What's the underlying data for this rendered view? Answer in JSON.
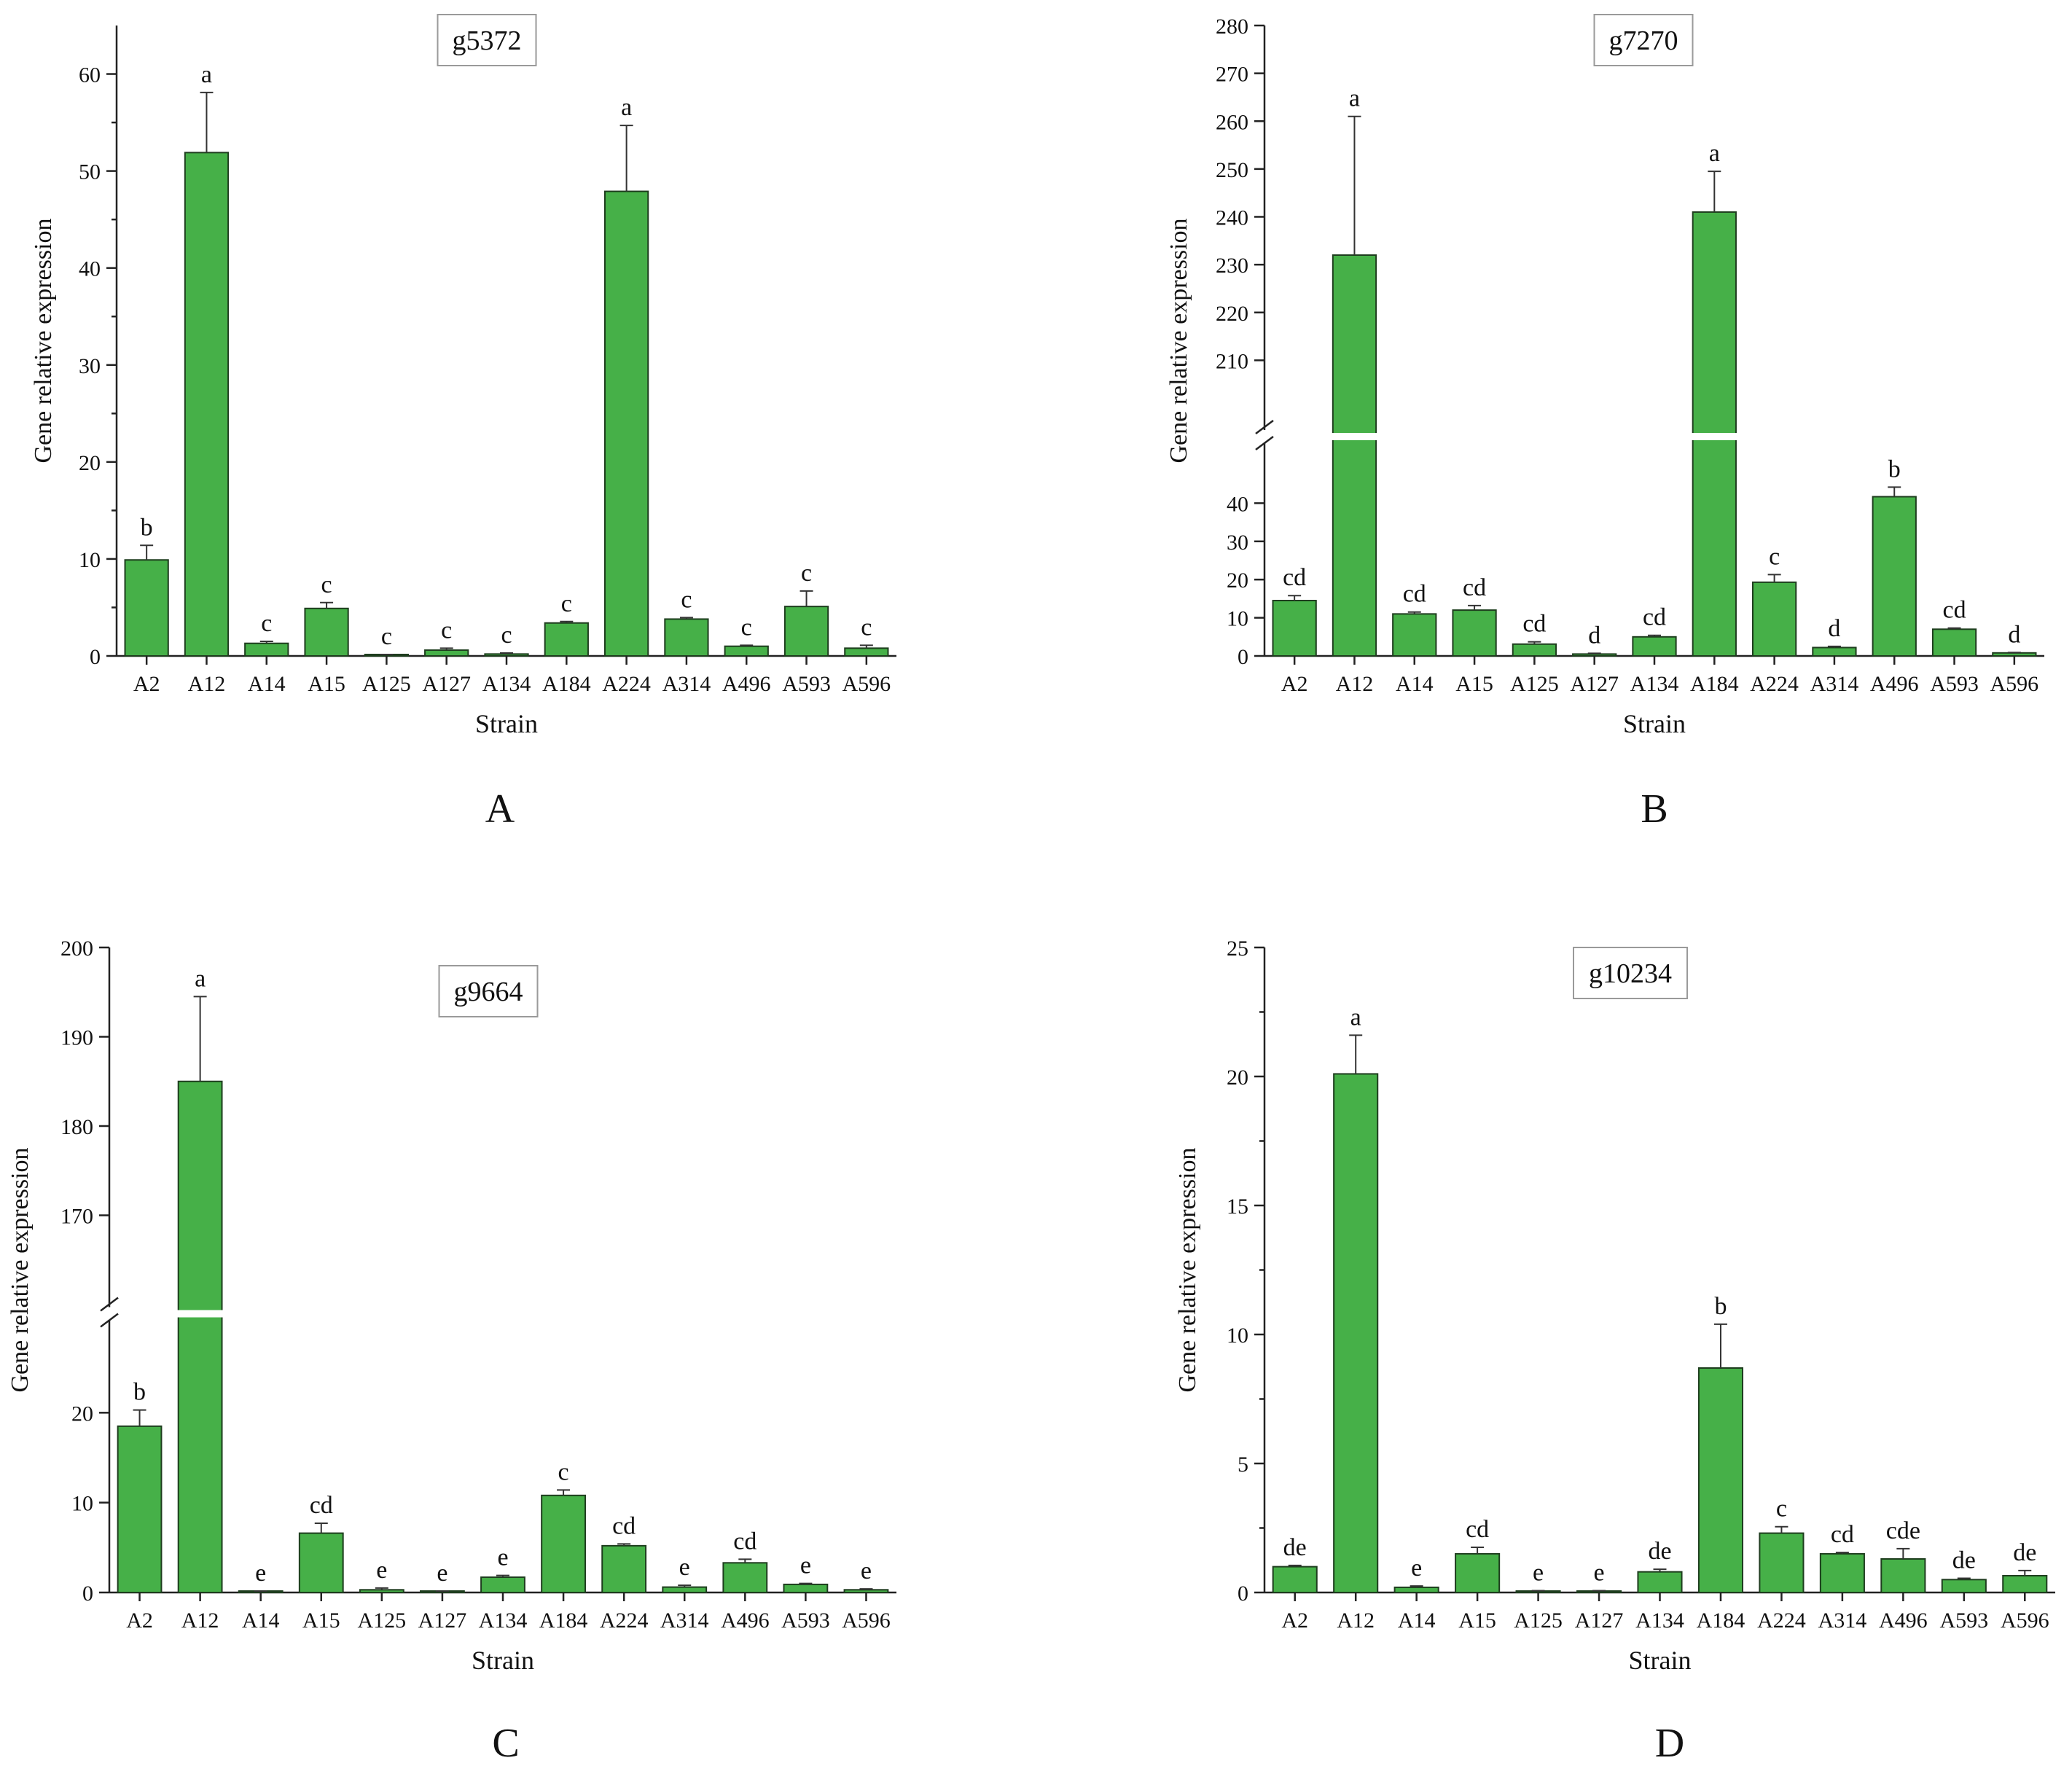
{
  "panels": [
    {
      "letter": "A",
      "title": "g5372",
      "ylabel": "Gene relative expression",
      "xlabel": "Strain",
      "chart_data": {
        "type": "bar",
        "title": "g5372",
        "xlabel": "Strain",
        "ylabel": "Gene relative expression",
        "categories": [
          "A2",
          "A12",
          "A14",
          "A15",
          "A125",
          "A127",
          "A134",
          "A184",
          "A224",
          "A314",
          "A496",
          "A593",
          "A596"
        ],
        "values": [
          9.9,
          51.9,
          1.3,
          4.9,
          0.1,
          0.6,
          0.2,
          3.4,
          47.9,
          3.8,
          1.0,
          5.1,
          0.8
        ],
        "errors": [
          1.5,
          6.2,
          0.2,
          0.6,
          0.05,
          0.2,
          0.1,
          0.15,
          6.8,
          0.15,
          0.1,
          1.6,
          0.3
        ],
        "letters": [
          "b",
          "a",
          "c",
          "c",
          "c",
          "c",
          "c",
          "c",
          "a",
          "c",
          "c",
          "c",
          "c"
        ],
        "ylim": [
          0,
          65
        ],
        "yticks": [
          0,
          10,
          20,
          30,
          40,
          50,
          60
        ],
        "break": null
      }
    },
    {
      "letter": "B",
      "title": "g7270",
      "ylabel": "Gene relative expression",
      "xlabel": "Strain",
      "chart_data": {
        "type": "bar",
        "title": "g7270",
        "xlabel": "Strain",
        "ylabel": "Gene relative expression",
        "categories": [
          "A2",
          "A12",
          "A14",
          "A15",
          "A125",
          "A127",
          "A134",
          "A184",
          "A224",
          "A314",
          "A496",
          "A593",
          "A596"
        ],
        "values": [
          14.5,
          232,
          11,
          12,
          3.1,
          0.5,
          5,
          241,
          19.3,
          2.2,
          41.7,
          7,
          0.8
        ],
        "errors": [
          1.3,
          29,
          0.5,
          1.2,
          0.6,
          0.2,
          0.4,
          8.5,
          2.0,
          0.3,
          2.5,
          0.3,
          0.1
        ],
        "letters": [
          "cd",
          "a",
          "cd",
          "cd",
          "cd",
          "d",
          "cd",
          "a",
          "c",
          "d",
          "b",
          "cd",
          "d"
        ],
        "ylim": [
          0,
          280
        ],
        "yticks_low": [
          0,
          10,
          20,
          30,
          40
        ],
        "yticks_high": [
          210,
          220,
          230,
          240,
          250,
          260,
          270,
          280
        ],
        "break": {
          "low_max": 50,
          "high_min": 200
        }
      }
    },
    {
      "letter": "C",
      "title": "g9664",
      "ylabel": "Gene relative expression",
      "xlabel": "Strain",
      "chart_data": {
        "type": "bar",
        "title": "g9664",
        "xlabel": "Strain",
        "ylabel": "Gene relative expression",
        "categories": [
          "A2",
          "A12",
          "A14",
          "A15",
          "A125",
          "A127",
          "A134",
          "A184",
          "A224",
          "A314",
          "A496",
          "A593",
          "A596"
        ],
        "values": [
          18.5,
          185,
          0.1,
          6.6,
          0.3,
          0.1,
          1.7,
          10.8,
          5.2,
          0.6,
          3.3,
          0.9,
          0.3
        ],
        "errors": [
          1.8,
          9.5,
          0.05,
          1.1,
          0.2,
          0.05,
          0.2,
          0.6,
          0.2,
          0.2,
          0.4,
          0.1,
          0.1
        ],
        "letters": [
          "b",
          "a",
          "e",
          "cd",
          "e",
          "e",
          "e",
          "c",
          "cd",
          "e",
          "cd",
          "e",
          "e"
        ],
        "ylim": [
          0,
          200
        ],
        "yticks_low": [
          0,
          10,
          20
        ],
        "yticks_high": [
          170,
          180,
          190,
          200
        ],
        "break": {
          "low_max": 30,
          "high_min": 160
        }
      }
    },
    {
      "letter": "D",
      "title": "g10234",
      "ylabel": "Gene relative expression",
      "xlabel": "Strain",
      "chart_data": {
        "type": "bar",
        "title": "g10234",
        "xlabel": "Strain",
        "ylabel": "Gene relative expression",
        "categories": [
          "A2",
          "A12",
          "A14",
          "A15",
          "A125",
          "A127",
          "A134",
          "A184",
          "A224",
          "A314",
          "A496",
          "A593",
          "A596"
        ],
        "values": [
          1.0,
          20.1,
          0.2,
          1.5,
          0.05,
          0.05,
          0.8,
          8.7,
          2.3,
          1.5,
          1.3,
          0.5,
          0.65
        ],
        "errors": [
          0.05,
          1.5,
          0.05,
          0.25,
          0.02,
          0.02,
          0.1,
          1.7,
          0.25,
          0.05,
          0.4,
          0.05,
          0.2
        ],
        "letters": [
          "de",
          "a",
          "e",
          "cd",
          "e",
          "e",
          "de",
          "b",
          "c",
          "cd",
          "cde",
          "de",
          "de"
        ],
        "ylim": [
          0,
          25
        ],
        "yticks": [
          0,
          5,
          10,
          15,
          20,
          25
        ],
        "break": null
      }
    }
  ]
}
